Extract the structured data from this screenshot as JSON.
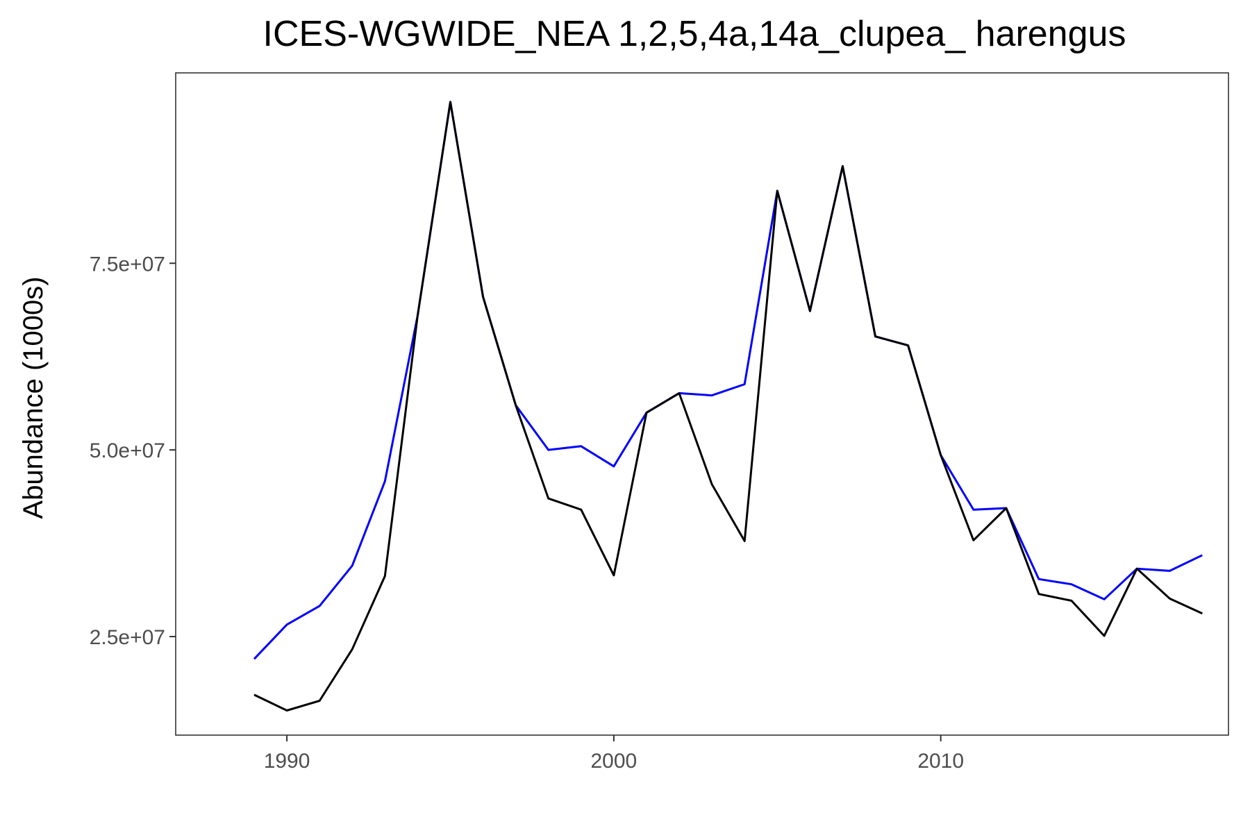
{
  "chart_data": {
    "type": "line",
    "title": "ICES-WGWIDE_NEA 1,2,5,4a,14a_clupea_ harengus",
    "xlabel": "",
    "ylabel": "Abundance (1000s)",
    "x": [
      1989,
      1990,
      1991,
      1992,
      1993,
      1994,
      1995,
      1996,
      1997,
      1998,
      1999,
      2000,
      2001,
      2002,
      2003,
      2004,
      2005,
      2006,
      2007,
      2008,
      2009,
      2010,
      2011,
      2012,
      2013,
      2014,
      2015,
      2016,
      2017,
      2018
    ],
    "xlim": [
      1986.6,
      2018.8
    ],
    "ylim": [
      11800000,
      100500000
    ],
    "x_ticks": [
      1990,
      2000,
      2010
    ],
    "x_tick_labels": [
      "1990",
      "2000",
      "2010"
    ],
    "y_ticks": [
      25000000,
      50000000,
      75000000
    ],
    "y_tick_labels": [
      "2.5e+07",
      "5.0e+07",
      "7.5e+07"
    ],
    "grid": false,
    "legend": "none",
    "series": [
      {
        "color": "#0000ff",
        "values": [
          22000000,
          26600000,
          29100000,
          34500000,
          45800000,
          68000000,
          96600000,
          70500000,
          56000000,
          50000000,
          50500000,
          47800000,
          55000000,
          57600000,
          57300000,
          58800000,
          84700000,
          68600000,
          88000000,
          65200000,
          64000000,
          49300000,
          42000000,
          42200000,
          32700000,
          32000000,
          30000000,
          34100000,
          33800000,
          35900000
        ]
      },
      {
        "color": "#000000",
        "values": [
          17200000,
          15100000,
          16400000,
          23300000,
          33100000,
          68000000,
          96600000,
          70500000,
          56000000,
          43500000,
          42000000,
          33200000,
          55000000,
          57600000,
          45400000,
          37800000,
          84700000,
          68600000,
          88000000,
          65200000,
          64000000,
          49300000,
          37900000,
          42200000,
          30700000,
          29800000,
          25100000,
          34100000,
          30100000,
          28100000
        ]
      }
    ]
  }
}
